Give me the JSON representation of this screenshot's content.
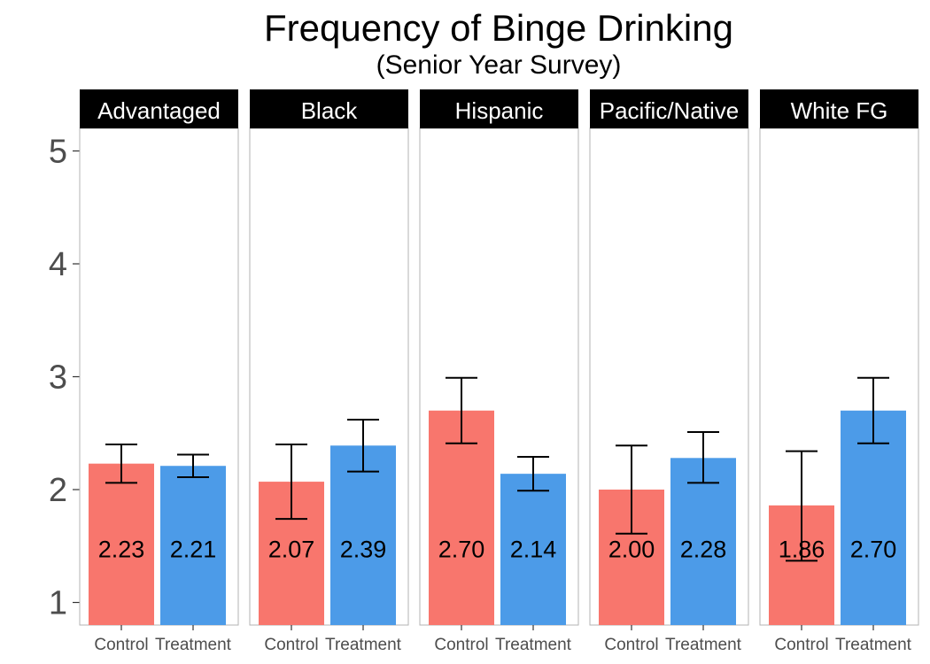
{
  "chart_data": {
    "type": "bar",
    "title": "Frequency of Binge Drinking",
    "subtitle": "(Senior Year Survey)",
    "xlabel": "",
    "ylabel": "",
    "ylim": [
      0.8,
      5.2
    ],
    "yticks": [
      1,
      2,
      3,
      4,
      5
    ],
    "grid": false,
    "legend": "none",
    "categories": [
      "Control",
      "Treatment"
    ],
    "colors": {
      "Control": "#F8766D",
      "Treatment": "#4C9BE8"
    },
    "panels": [
      {
        "name": "Advantaged",
        "bars": [
          {
            "category": "Control",
            "value": 2.23,
            "label": "2.23",
            "err_low": 2.06,
            "err_high": 2.4
          },
          {
            "category": "Treatment",
            "value": 2.21,
            "label": "2.21",
            "err_low": 2.11,
            "err_high": 2.31
          }
        ]
      },
      {
        "name": "Black",
        "bars": [
          {
            "category": "Control",
            "value": 2.07,
            "label": "2.07",
            "err_low": 1.74,
            "err_high": 2.4
          },
          {
            "category": "Treatment",
            "value": 2.39,
            "label": "2.39",
            "err_low": 2.16,
            "err_high": 2.62
          }
        ]
      },
      {
        "name": "Hispanic",
        "bars": [
          {
            "category": "Control",
            "value": 2.7,
            "label": "2.70",
            "err_low": 2.41,
            "err_high": 2.99
          },
          {
            "category": "Treatment",
            "value": 2.14,
            "label": "2.14",
            "err_low": 1.99,
            "err_high": 2.29
          }
        ]
      },
      {
        "name": "Pacific/Native",
        "bars": [
          {
            "category": "Control",
            "value": 2.0,
            "label": "2.00",
            "err_low": 1.61,
            "err_high": 2.39
          },
          {
            "category": "Treatment",
            "value": 2.28,
            "label": "2.28",
            "err_low": 2.06,
            "err_high": 2.51
          }
        ]
      },
      {
        "name": "White FG",
        "bars": [
          {
            "category": "Control",
            "value": 1.86,
            "label": "1.86",
            "err_low": 1.37,
            "err_high": 2.34
          },
          {
            "category": "Treatment",
            "value": 2.7,
            "label": "2.70",
            "err_low": 2.41,
            "err_high": 2.99
          }
        ]
      }
    ]
  }
}
